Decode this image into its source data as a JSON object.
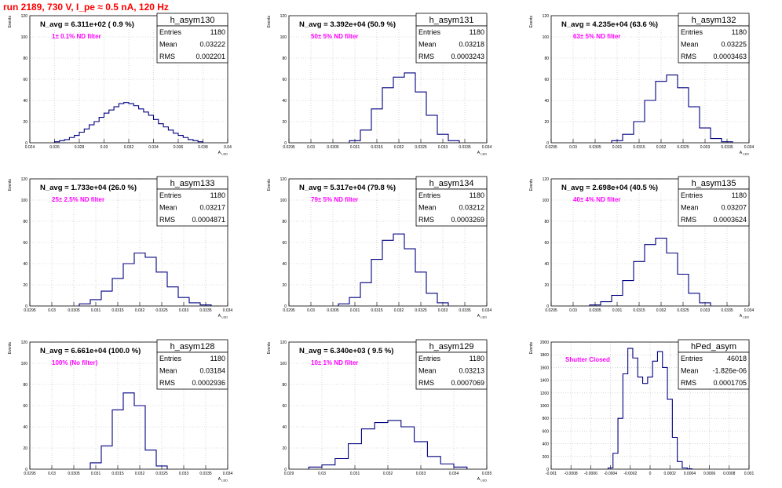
{
  "canvas_title": "run 2189,   730 V, I_pe ≈ 0.5 nA, 120 Hz",
  "colors": {
    "title": "#ff0000",
    "annotation": "#ff00ff",
    "histogram": "#000080",
    "grid": "#bbbbbb"
  },
  "chart_data": [
    {
      "type": "histogram",
      "name": "h_asym130",
      "xlabel": "A_LED",
      "ylabel": "Events",
      "xlim": [
        0.024,
        0.04
      ],
      "ylim": [
        0,
        120
      ],
      "xticks": [
        "0.024",
        "0.026",
        "0.028",
        "0.03",
        "0.032",
        "0.034",
        "0.036",
        "0.038",
        "0.04"
      ],
      "yticks": [
        "0",
        "20",
        "40",
        "60",
        "80",
        "100",
        "120"
      ],
      "avg_label": "N_avg = 6.311e+02 ( 0.9 %)",
      "filter_label": "1± 0.1% ND filter",
      "stats": {
        "Entries": "1180",
        "Mean": "0.03222",
        "RMS": "0.002201"
      },
      "x": [
        0.0262,
        0.0266,
        0.027,
        0.0274,
        0.0278,
        0.0282,
        0.0286,
        0.029,
        0.0294,
        0.0298,
        0.0302,
        0.0306,
        0.031,
        0.0314,
        0.0318,
        0.0322,
        0.0326,
        0.033,
        0.0334,
        0.0338,
        0.0342,
        0.0346,
        0.035,
        0.0354,
        0.0358,
        0.0362,
        0.0366,
        0.037,
        0.0374,
        0.0378
      ],
      "y": [
        1,
        2,
        3,
        5,
        7,
        10,
        13,
        17,
        20,
        24,
        28,
        31,
        34,
        37,
        38,
        37,
        35,
        32,
        29,
        26,
        22,
        18,
        15,
        12,
        9,
        7,
        5,
        3,
        2,
        1
      ]
    },
    {
      "type": "histogram",
      "name": "h_asym131",
      "xlabel": "A_LED",
      "ylabel": "Events",
      "xlim": [
        0.0295,
        0.034
      ],
      "ylim": [
        0,
        120
      ],
      "xticks": [
        "0.0295",
        "0.03",
        "0.0305",
        "0.031",
        "0.0315",
        "0.032",
        "0.0325",
        "0.033",
        "0.0335",
        "0.034"
      ],
      "yticks": [
        "0",
        "20",
        "40",
        "60",
        "80",
        "100",
        "120"
      ],
      "avg_label": "N_avg = 3.392e+04 (50.9 %)",
      "filter_label": "50± 5% ND filter",
      "stats": {
        "Entries": "1180",
        "Mean": "0.03218",
        "RMS": "0.0003243"
      },
      "x": [
        0.031,
        0.03125,
        0.0315,
        0.03175,
        0.032,
        0.03225,
        0.0325,
        0.03275,
        0.033,
        0.03325
      ],
      "y": [
        2,
        12,
        32,
        52,
        62,
        66,
        48,
        26,
        8,
        2
      ]
    },
    {
      "type": "histogram",
      "name": "h_asym132",
      "xlabel": "A_LED",
      "ylabel": "Events",
      "xlim": [
        0.0295,
        0.034
      ],
      "ylim": [
        0,
        120
      ],
      "xticks": [
        "0.0295",
        "0.03",
        "0.0305",
        "0.031",
        "0.0315",
        "0.032",
        "0.0325",
        "0.033",
        "0.0335",
        "0.034"
      ],
      "yticks": [
        "0",
        "20",
        "40",
        "60",
        "80",
        "100",
        "120"
      ],
      "avg_label": "N_avg = 4.235e+04 (63.6 %)",
      "filter_label": "63± 5% ND filter",
      "stats": {
        "Entries": "1180",
        "Mean": "0.03225",
        "RMS": "0.0003463"
      },
      "x": [
        0.031,
        0.03125,
        0.0315,
        0.03175,
        0.032,
        0.03225,
        0.0325,
        0.03275,
        0.033,
        0.03325,
        0.0335
      ],
      "y": [
        2,
        8,
        20,
        40,
        58,
        64,
        52,
        34,
        14,
        4,
        1
      ]
    },
    {
      "type": "histogram",
      "name": "h_asym133",
      "xlabel": "A_LED",
      "ylabel": "Events",
      "xlim": [
        0.0295,
        0.034
      ],
      "ylim": [
        0,
        120
      ],
      "xticks": [
        "0.0295",
        "0.03",
        "0.0305",
        "0.031",
        "0.0315",
        "0.032",
        "0.0325",
        "0.033",
        "0.0335",
        "0.034"
      ],
      "yticks": [
        "0",
        "20",
        "40",
        "60",
        "80",
        "100",
        "120"
      ],
      "avg_label": "N_avg = 1.733e+04 (26.0 %)",
      "filter_label": "25± 2.5% ND filter",
      "stats": {
        "Entries": "1180",
        "Mean": "0.03217",
        "RMS": "0.0004871"
      },
      "x": [
        0.03075,
        0.031,
        0.03125,
        0.0315,
        0.03175,
        0.032,
        0.03225,
        0.0325,
        0.03275,
        0.033,
        0.03325,
        0.0335
      ],
      "y": [
        2,
        6,
        14,
        26,
        40,
        50,
        46,
        32,
        18,
        8,
        3,
        1
      ]
    },
    {
      "type": "histogram",
      "name": "h_asym134",
      "xlabel": "A_LED",
      "ylabel": "Events",
      "xlim": [
        0.0295,
        0.034
      ],
      "ylim": [
        0,
        120
      ],
      "xticks": [
        "0.0295",
        "0.03",
        "0.0305",
        "0.031",
        "0.0315",
        "0.032",
        "0.0325",
        "0.033",
        "0.0335",
        "0.034"
      ],
      "yticks": [
        "0",
        "20",
        "40",
        "60",
        "80",
        "100",
        "120"
      ],
      "avg_label": "N_avg = 5.317e+04 (79.8 %)",
      "filter_label": "79± 5% ND filter",
      "stats": {
        "Entries": "1180",
        "Mean": "0.03212",
        "RMS": "0.0003269"
      },
      "x": [
        0.03075,
        0.031,
        0.03125,
        0.0315,
        0.03175,
        0.032,
        0.03225,
        0.0325,
        0.03275,
        0.033
      ],
      "y": [
        2,
        8,
        22,
        44,
        62,
        68,
        54,
        32,
        12,
        3
      ]
    },
    {
      "type": "histogram",
      "name": "h_asym135",
      "xlabel": "A_LED",
      "ylabel": "Events",
      "xlim": [
        0.0295,
        0.034
      ],
      "ylim": [
        0,
        120
      ],
      "xticks": [
        "0.0295",
        "0.03",
        "0.0305",
        "0.031",
        "0.0315",
        "0.032",
        "0.0325",
        "0.033",
        "0.0335",
        "0.034"
      ],
      "yticks": [
        "0",
        "20",
        "40",
        "60",
        "80",
        "100",
        "120"
      ],
      "avg_label": "N_avg = 2.698e+04 (40.5 %)",
      "filter_label": "40± 4% ND filter",
      "stats": {
        "Entries": "1180",
        "Mean": "0.03207",
        "RMS": "0.0003624"
      },
      "x": [
        0.0305,
        0.03075,
        0.031,
        0.03125,
        0.0315,
        0.03175,
        0.032,
        0.03225,
        0.0325,
        0.03275,
        0.033
      ],
      "y": [
        1,
        4,
        10,
        24,
        42,
        58,
        64,
        50,
        30,
        12,
        3
      ]
    },
    {
      "type": "histogram",
      "name": "h_asym128",
      "xlabel": "A_LED",
      "ylabel": "Events",
      "xlim": [
        0.0295,
        0.034
      ],
      "ylim": [
        0,
        120
      ],
      "xticks": [
        "0.0295",
        "0.03",
        "0.0305",
        "0.031",
        "0.0315",
        "0.032",
        "0.0325",
        "0.033",
        "0.0335",
        "0.034"
      ],
      "yticks": [
        "0",
        "20",
        "40",
        "60",
        "80",
        "100",
        "120"
      ],
      "avg_label": "N_avg = 6.661e+04 (100.0 %)",
      "filter_label": "100% (No filter)",
      "stats": {
        "Entries": "1180",
        "Mean": "0.03184",
        "RMS": "0.0002936"
      },
      "x": [
        0.031,
        0.03125,
        0.0315,
        0.03175,
        0.032,
        0.03225,
        0.0325
      ],
      "y": [
        6,
        22,
        56,
        72,
        60,
        18,
        3
      ]
    },
    {
      "type": "histogram",
      "name": "h_asym129",
      "xlabel": "A_LED",
      "ylabel": "Events",
      "xlim": [
        0.029,
        0.035
      ],
      "ylim": [
        0,
        120
      ],
      "xticks": [
        "0.029",
        "0.03",
        "0.031",
        "0.032",
        "0.033",
        "0.034",
        "0.035"
      ],
      "yticks": [
        "0",
        "20",
        "40",
        "60",
        "80",
        "100",
        "120"
      ],
      "avg_label": "N_avg = 6.340e+03 ( 9.5 %)",
      "filter_label": "10± 1% ND filter",
      "stats": {
        "Entries": "1180",
        "Mean": "0.03213",
        "RMS": "0.0007069"
      },
      "x": [
        0.0298,
        0.0302,
        0.0306,
        0.031,
        0.0314,
        0.0318,
        0.0322,
        0.0326,
        0.033,
        0.0334,
        0.0338,
        0.0342
      ],
      "y": [
        2,
        4,
        10,
        24,
        38,
        44,
        46,
        40,
        26,
        12,
        5,
        2
      ]
    },
    {
      "type": "histogram",
      "name": "hPed_asym",
      "xlabel": "",
      "ylabel": "Events",
      "xlim": [
        -0.001,
        0.001
      ],
      "ylim": [
        0,
        2000
      ],
      "xticks": [
        "-0.001",
        "-0.0008",
        "-0.0006",
        "-0.0004",
        "-0.0002",
        "0",
        "0.0002",
        "0.0004",
        "0.0006",
        "0.0008",
        "0.001"
      ],
      "yticks": [
        "0",
        "200",
        "400",
        "600",
        "800",
        "1000",
        "1200",
        "1400",
        "1600",
        "1800",
        "2000"
      ],
      "avg_label": "",
      "filter_label": "Shutter Closed",
      "stats": {
        "Entries": "46018",
        "Mean": "-1.826e-06",
        "RMS": "0.0001705"
      },
      "x": [
        -0.0004,
        -0.00035,
        -0.0003,
        -0.00025,
        -0.0002,
        -0.00015,
        -0.0001,
        -5e-05,
        0,
        5e-05,
        0.0001,
        0.00015,
        0.0002,
        0.00025,
        0.0003,
        0.00035,
        0.0004
      ],
      "y": [
        20,
        250,
        800,
        1500,
        1900,
        1750,
        1450,
        1350,
        1450,
        1700,
        1850,
        1600,
        1100,
        500,
        120,
        20,
        5
      ]
    }
  ]
}
